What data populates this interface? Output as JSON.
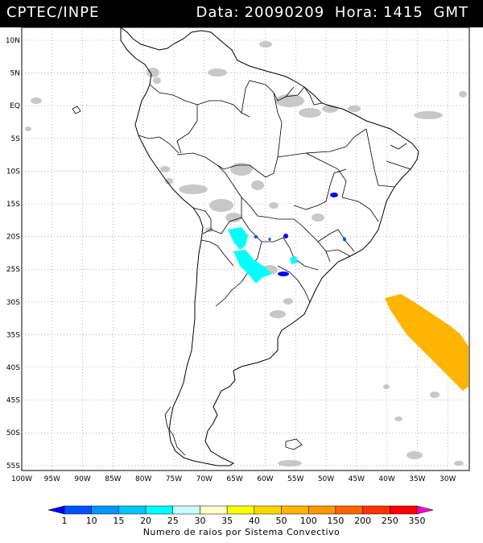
{
  "header": {
    "source": "CPTEC/INPE",
    "data_label": "Data:",
    "data_value": "20090209",
    "hora_label": "Hora:",
    "hora_value": "1415",
    "tz": "GMT"
  },
  "map": {
    "lat_labels": [
      "10N",
      "5N",
      "EQ",
      "5S",
      "10S",
      "15S",
      "20S",
      "25S",
      "30S",
      "35S",
      "40S",
      "45S",
      "50S",
      "55S"
    ],
    "lon_labels": [
      "100W",
      "95W",
      "90W",
      "85W",
      "80W",
      "75W",
      "70W",
      "65W",
      "60W",
      "55W",
      "50W",
      "45W",
      "40W",
      "35W",
      "30W"
    ],
    "extent": {
      "lon_min": -100,
      "lon_max": -26,
      "lat_min": -56,
      "lat_max": 12
    }
  },
  "legend": {
    "title": "Numero de raios por Sistema Convectivo",
    "ticks": [
      "1",
      "10",
      "15",
      "20",
      "25",
      "30",
      "35",
      "40",
      "50",
      "100",
      "150",
      "200",
      "250",
      "350"
    ],
    "colors": [
      "#0000ff",
      "#0050ff",
      "#0096ff",
      "#00c8ff",
      "#00ffff",
      "#c8ffff",
      "#ffffc8",
      "#ffff00",
      "#ffd700",
      "#ffb400",
      "#ff9600",
      "#ff6400",
      "#ff3200",
      "#ff0000",
      "#ff00c8"
    ]
  }
}
